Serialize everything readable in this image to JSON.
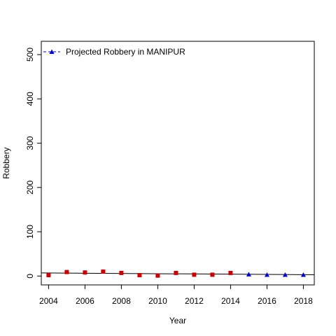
{
  "chart_data": {
    "type": "scatter",
    "title": "",
    "xlabel": "Year",
    "ylabel": "Robbery",
    "xlim": [
      2003.6,
      2018.6
    ],
    "ylim": [
      -20,
      530
    ],
    "x_ticks": [
      2004,
      2006,
      2008,
      2010,
      2012,
      2014,
      2016,
      2018
    ],
    "y_ticks": [
      0,
      100,
      200,
      300,
      400,
      500
    ],
    "legend": {
      "placement": "top-left",
      "label": "Projected Robbery in MANIPUR"
    },
    "series": [
      {
        "marker": "square",
        "color": "#cc0000",
        "x": [
          2004,
          2005,
          2006,
          2007,
          2008,
          2009,
          2010,
          2011,
          2012,
          2013,
          2014
        ],
        "y": [
          2,
          9,
          8,
          10,
          7,
          2,
          1,
          7,
          3,
          3,
          7
        ]
      },
      {
        "name": "Projected Robbery in MANIPUR",
        "marker": "triangle",
        "color": "#0000cc",
        "x": [
          2015,
          2016,
          2017,
          2018
        ],
        "y": [
          4,
          3,
          3,
          3
        ]
      }
    ],
    "trend_line": {
      "color": "#000000",
      "x": [
        2003.6,
        2018.6
      ],
      "y": [
        7,
        3
      ]
    }
  }
}
